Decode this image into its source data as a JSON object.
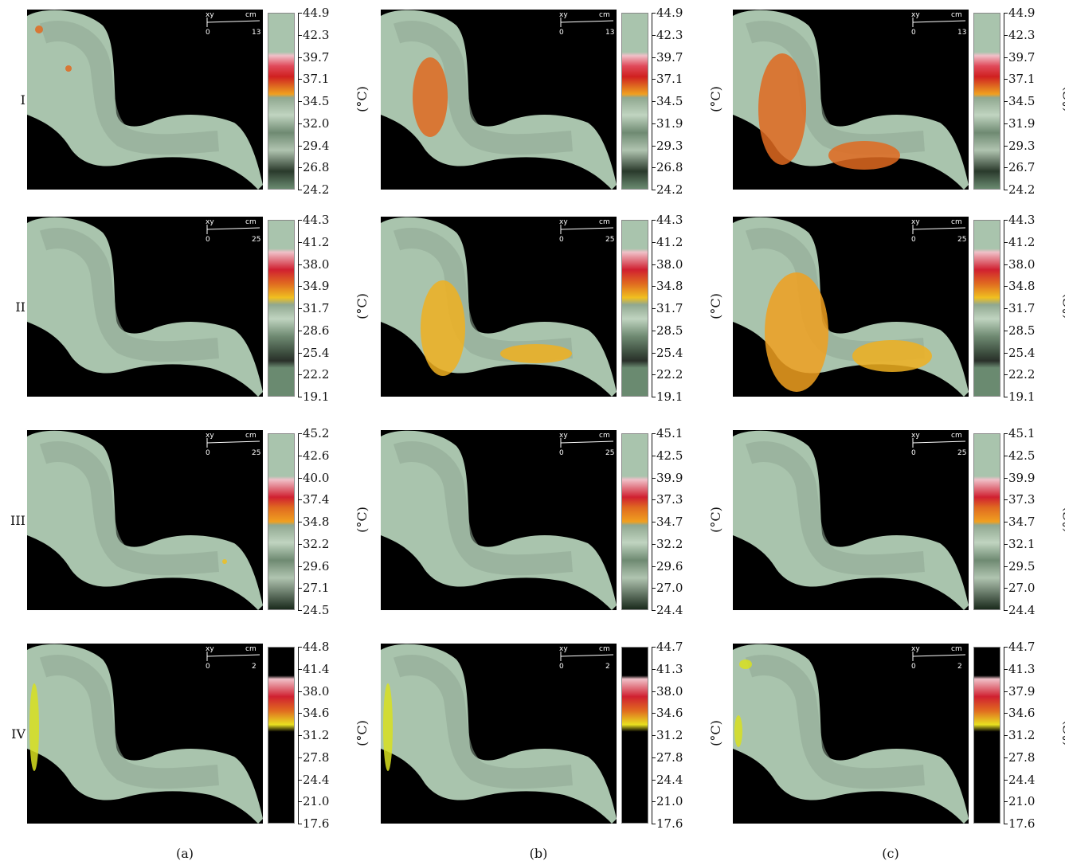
{
  "rows": [
    {
      "label": "I",
      "scales": [
        [
          "44.9",
          "42.3",
          "39.7",
          "37.1",
          "34.5",
          "32.0",
          "29.4",
          "26.8",
          "24.2"
        ],
        [
          "44.9",
          "42.3",
          "39.7",
          "37.1",
          "34.5",
          "31.9",
          "29.3",
          "26.8",
          "24.2"
        ],
        [
          "44.9",
          "42.3",
          "39.7",
          "37.1",
          "34.5",
          "31.9",
          "29.3",
          "26.7",
          "24.2"
        ]
      ]
    },
    {
      "label": "II",
      "scales": [
        [
          "44.3",
          "41.2",
          "38.0",
          "34.9",
          "31.7",
          "28.6",
          "25.4",
          "22.2",
          "19.1"
        ],
        [
          "44.3",
          "41.2",
          "38.0",
          "34.8",
          "31.7",
          "28.5",
          "25.4",
          "22.2",
          "19.1"
        ],
        [
          "44.3",
          "41.2",
          "38.0",
          "34.8",
          "31.7",
          "28.5",
          "25.4",
          "22.2",
          "19.1"
        ]
      ]
    },
    {
      "label": "III",
      "scales": [
        [
          "45.2",
          "42.6",
          "40.0",
          "37.4",
          "34.8",
          "32.2",
          "29.6",
          "27.1",
          "24.5"
        ],
        [
          "45.1",
          "42.5",
          "39.9",
          "37.3",
          "34.7",
          "32.2",
          "29.6",
          "27.0",
          "24.4"
        ],
        [
          "45.1",
          "42.5",
          "39.9",
          "37.3",
          "34.7",
          "32.1",
          "29.5",
          "27.0",
          "24.4"
        ]
      ]
    },
    {
      "label": "IV",
      "scales": [
        [
          "44.8",
          "41.4",
          "38.0",
          "34.6",
          "31.2",
          "27.8",
          "24.4",
          "21.0",
          "17.6"
        ],
        [
          "44.7",
          "41.3",
          "38.0",
          "34.6",
          "31.2",
          "27.8",
          "24.4",
          "21.0",
          "17.6"
        ],
        [
          "44.7",
          "41.3",
          "37.9",
          "34.6",
          "31.2",
          "27.8",
          "24.4",
          "21.0",
          "17.6"
        ]
      ]
    }
  ],
  "unit": "(°C)",
  "columns": [
    "(a)",
    "(b)",
    "(c)"
  ],
  "scalebar": {
    "xy": "xy",
    "cm": "cm",
    "zero": "0"
  },
  "scalebar_max": [
    "13",
    "25",
    "25",
    "2"
  ],
  "colors": {
    "skin": "#a9c4ad",
    "skin_dark": "#8fa893",
    "hot_orange": "#e06a20",
    "hot_yellow": "#f0b020",
    "bright_yellow": "#d8e020",
    "background": "#000000"
  }
}
